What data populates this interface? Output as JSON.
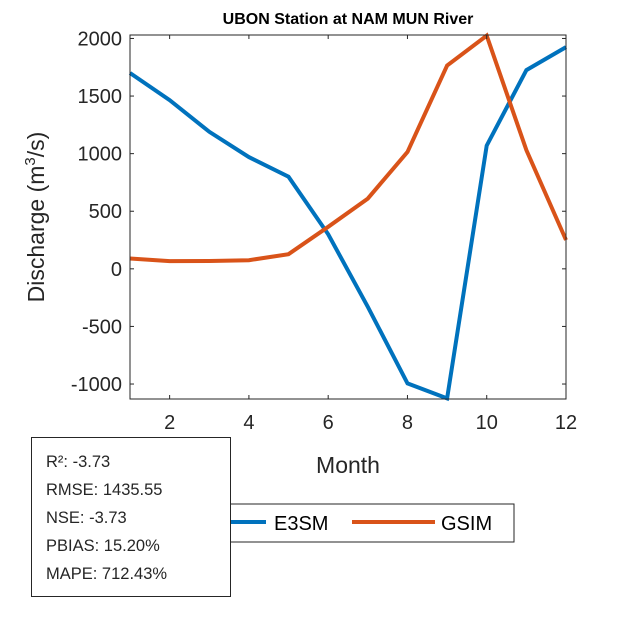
{
  "chart_data": {
    "type": "line",
    "title": "UBON  Station at  NAM MUN  River",
    "xlabel": "Month",
    "ylabel": "Discharge (m³/s)",
    "ylabel_base": "Discharge (m",
    "ylabel_sup": "3",
    "ylabel_tail": "/s)",
    "xlim": [
      1,
      12
    ],
    "ylim": [
      -1130,
      2030
    ],
    "xticks": [
      2,
      4,
      6,
      8,
      10,
      12
    ],
    "yticks": [
      -1000,
      -500,
      0,
      500,
      1000,
      1500,
      2000
    ],
    "grid": false,
    "legend_position": "bottom",
    "x": [
      1,
      2,
      3,
      4,
      5,
      6,
      7,
      8,
      9,
      10,
      11,
      12
    ],
    "series": [
      {
        "name": "E3SM",
        "color": "#0072BD",
        "values": [
          1700,
          1465,
          1190,
          970,
          800,
          300,
          -330,
          -995,
          -1125,
          1070,
          1725,
          1925
        ]
      },
      {
        "name": "GSIM",
        "color": "#D95319",
        "values": [
          90,
          67,
          68,
          75,
          127,
          365,
          610,
          1015,
          1765,
          2025,
          1030,
          250
        ]
      }
    ]
  },
  "stats": [
    "R²: -3.73",
    "RMSE: 1435.55",
    "NSE: -3.73",
    "PBIAS: 15.20%",
    "MAPE: 712.43%"
  ]
}
